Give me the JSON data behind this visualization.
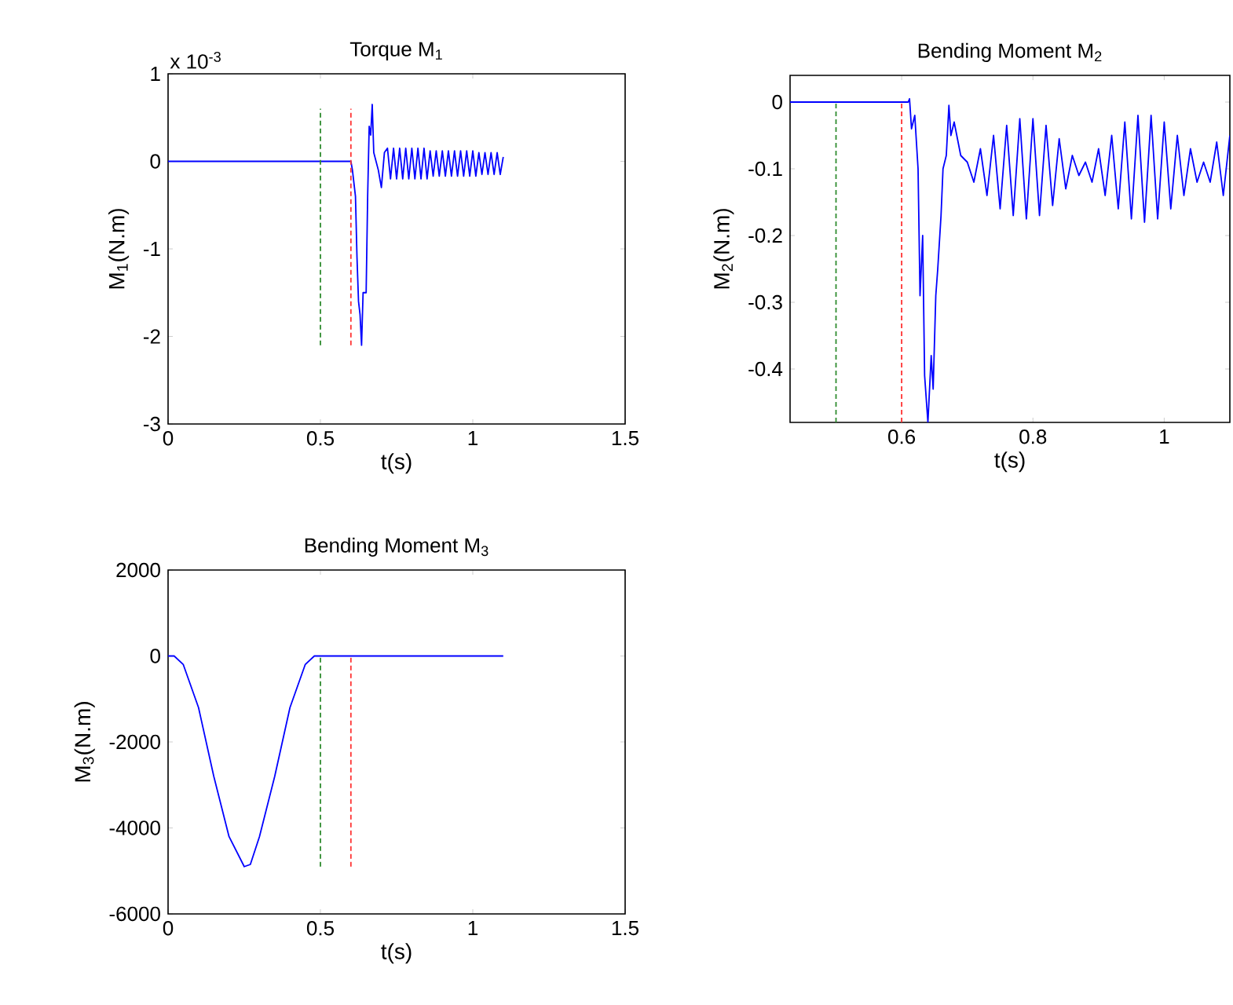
{
  "chart_data": [
    {
      "type": "line",
      "title": "Torque M$_{1}$",
      "xlabel": "t(s)",
      "ylabel": "M$_{1}$(N.m)",
      "annotations": [
        "x 10$^{-3}$"
      ],
      "xlim": [
        0,
        1.5
      ],
      "ylim": [
        -3,
        1
      ],
      "xticks": [
        0,
        0.5,
        1,
        1.5
      ],
      "yticks": [
        -3,
        -2,
        -1,
        0,
        1
      ],
      "series": [
        {
          "color": "#0000ff",
          "line_style": "solid",
          "x": [
            0,
            0.6,
            0.605,
            0.615,
            0.62,
            0.625,
            0.63,
            0.635,
            0.64,
            0.65,
            0.655,
            0.66,
            0.665,
            0.67,
            0.675,
            0.69,
            0.7,
            0.71,
            0.72,
            0.73,
            0.74,
            0.75,
            0.76,
            0.77,
            0.78,
            0.79,
            0.8,
            0.81,
            0.82,
            0.83,
            0.84,
            0.85,
            0.86,
            0.87,
            0.88,
            0.89,
            0.9,
            0.91,
            0.92,
            0.93,
            0.94,
            0.95,
            0.96,
            0.97,
            0.98,
            0.99,
            1.0,
            1.01,
            1.02,
            1.03,
            1.04,
            1.05,
            1.06,
            1.07,
            1.08,
            1.09,
            1.1
          ],
          "values": [
            0,
            0,
            -0.1,
            -0.4,
            -1.1,
            -1.6,
            -1.75,
            -2.1,
            -1.5,
            -1.5,
            -0.4,
            0.4,
            0.3,
            0.65,
            0.1,
            -0.1,
            -0.3,
            0.1,
            0.15,
            -0.2,
            0.15,
            -0.2,
            0.15,
            -0.2,
            0.15,
            -0.2,
            0.15,
            -0.2,
            0.15,
            -0.2,
            0.15,
            -0.2,
            0.12,
            -0.17,
            0.12,
            -0.17,
            0.12,
            -0.17,
            0.12,
            -0.17,
            0.12,
            -0.17,
            0.12,
            -0.17,
            0.12,
            -0.17,
            0.12,
            -0.17,
            0.1,
            -0.15,
            0.1,
            -0.15,
            0.1,
            -0.15,
            0.1,
            -0.15,
            0.05
          ]
        },
        {
          "color": "#2e8b2e",
          "line_style": "dashed",
          "x": [
            0.5,
            0.5
          ],
          "values": [
            -2.1,
            0.6
          ]
        },
        {
          "color": "#ff3333",
          "line_style": "dashed",
          "x": [
            0.6,
            0.6
          ],
          "values": [
            -2.1,
            0.6
          ]
        }
      ]
    },
    {
      "type": "line",
      "title": "Bending Moment M$_{2}$",
      "xlabel": "t(s)",
      "ylabel": "M$_{2}$(N.m)",
      "xlim": [
        0.43,
        1.1
      ],
      "ylim": [
        -0.48,
        0.04
      ],
      "xticks": [
        0.6,
        0.8,
        1
      ],
      "yticks": [
        -0.4,
        -0.3,
        -0.2,
        -0.1,
        0
      ],
      "series": [
        {
          "color": "#0000ff",
          "line_style": "solid",
          "x": [
            0.43,
            0.61,
            0.612,
            0.615,
            0.62,
            0.625,
            0.628,
            0.632,
            0.635,
            0.64,
            0.645,
            0.648,
            0.652,
            0.655,
            0.66,
            0.663,
            0.668,
            0.672,
            0.675,
            0.68,
            0.69,
            0.7,
            0.71,
            0.72,
            0.73,
            0.74,
            0.75,
            0.76,
            0.77,
            0.78,
            0.79,
            0.8,
            0.81,
            0.82,
            0.83,
            0.84,
            0.85,
            0.86,
            0.87,
            0.88,
            0.89,
            0.9,
            0.91,
            0.92,
            0.93,
            0.94,
            0.95,
            0.96,
            0.97,
            0.98,
            0.99,
            1.0,
            1.01,
            1.02,
            1.03,
            1.04,
            1.05,
            1.06,
            1.07,
            1.08,
            1.09,
            1.1
          ],
          "values": [
            0,
            0,
            0.005,
            -0.04,
            -0.02,
            -0.1,
            -0.29,
            -0.2,
            -0.41,
            -0.48,
            -0.38,
            -0.43,
            -0.29,
            -0.25,
            -0.17,
            -0.1,
            -0.08,
            -0.005,
            -0.05,
            -0.03,
            -0.08,
            -0.09,
            -0.12,
            -0.07,
            -0.14,
            -0.05,
            -0.16,
            -0.035,
            -0.17,
            -0.025,
            -0.175,
            -0.025,
            -0.17,
            -0.035,
            -0.155,
            -0.055,
            -0.13,
            -0.08,
            -0.11,
            -0.09,
            -0.12,
            -0.07,
            -0.14,
            -0.05,
            -0.16,
            -0.03,
            -0.175,
            -0.02,
            -0.18,
            -0.02,
            -0.175,
            -0.03,
            -0.16,
            -0.05,
            -0.14,
            -0.07,
            -0.12,
            -0.09,
            -0.12,
            -0.06,
            -0.14,
            -0.05
          ]
        },
        {
          "color": "#2e8b2e",
          "line_style": "dashed",
          "x": [
            0.5,
            0.5
          ],
          "values": [
            -0.48,
            0
          ]
        },
        {
          "color": "#ff3333",
          "line_style": "dashed",
          "x": [
            0.6,
            0.6
          ],
          "values": [
            -0.48,
            0
          ]
        }
      ]
    },
    {
      "type": "line",
      "title": "Bending Moment M$_{3}$",
      "xlabel": "t(s)",
      "ylabel": "M$_{3}$(N.m)",
      "xlim": [
        0,
        1.5
      ],
      "ylim": [
        -6000,
        2000
      ],
      "xticks": [
        0,
        0.5,
        1,
        1.5
      ],
      "yticks": [
        -6000,
        -4000,
        -2000,
        0,
        2000
      ],
      "series": [
        {
          "color": "#0000ff",
          "line_style": "solid",
          "x": [
            0,
            0.02,
            0.05,
            0.1,
            0.15,
            0.2,
            0.25,
            0.27,
            0.3,
            0.35,
            0.4,
            0.45,
            0.48,
            1.1
          ],
          "values": [
            0,
            0,
            -200,
            -1200,
            -2800,
            -4200,
            -4900,
            -4850,
            -4200,
            -2800,
            -1200,
            -200,
            0,
            0
          ]
        },
        {
          "color": "#2e8b2e",
          "line_style": "dashed",
          "x": [
            0.5,
            0.5
          ],
          "values": [
            -4900,
            0
          ]
        },
        {
          "color": "#ff3333",
          "line_style": "dashed",
          "x": [
            0.6,
            0.6
          ],
          "values": [
            -4900,
            0
          ]
        }
      ]
    }
  ]
}
